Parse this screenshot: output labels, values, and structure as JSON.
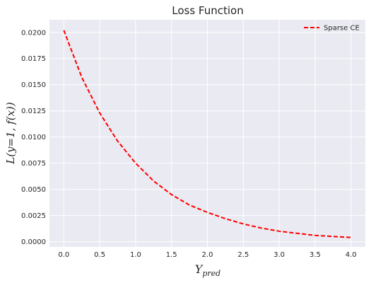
{
  "chart_data": {
    "type": "line",
    "title": "Loss Function",
    "xlabel": "Y_pred",
    "ylabel": "L(y=1, f(x))",
    "xlim": [
      -0.2,
      4.2
    ],
    "ylim": [
      -0.0005,
      0.0212
    ],
    "xticks": [
      0.0,
      0.5,
      1.0,
      1.5,
      2.0,
      2.5,
      3.0,
      3.5,
      4.0
    ],
    "xtick_labels": [
      "0.0",
      "0.5",
      "1.0",
      "1.5",
      "2.0",
      "2.5",
      "3.0",
      "3.5",
      "4.0"
    ],
    "yticks": [
      0.0,
      0.0025,
      0.005,
      0.0075,
      0.01,
      0.0125,
      0.015,
      0.0175,
      0.02
    ],
    "ytick_labels": [
      "0.0000",
      "0.0025",
      "0.0050",
      "0.0075",
      "0.0100",
      "0.0125",
      "0.0150",
      "0.0175",
      "0.0200"
    ],
    "grid": true,
    "legend_position": "top-right",
    "background_color": "#eaeaf2",
    "grid_color": "#ffffff",
    "series": [
      {
        "name": "Sparse CE",
        "color": "#ff0000",
        "line_style": "dashed",
        "x": [
          0.0,
          0.25,
          0.5,
          0.75,
          1.0,
          1.25,
          1.5,
          1.75,
          2.0,
          2.25,
          2.5,
          2.75,
          3.0,
          3.25,
          3.5,
          3.75,
          4.0
        ],
        "y": [
          0.0202,
          0.0157,
          0.0123,
          0.0096,
          0.0075,
          0.0058,
          0.0045,
          0.0035,
          0.0028,
          0.0022,
          0.0017,
          0.0013,
          0.001,
          0.0008,
          0.0006,
          0.0005,
          0.0004
        ]
      }
    ]
  }
}
